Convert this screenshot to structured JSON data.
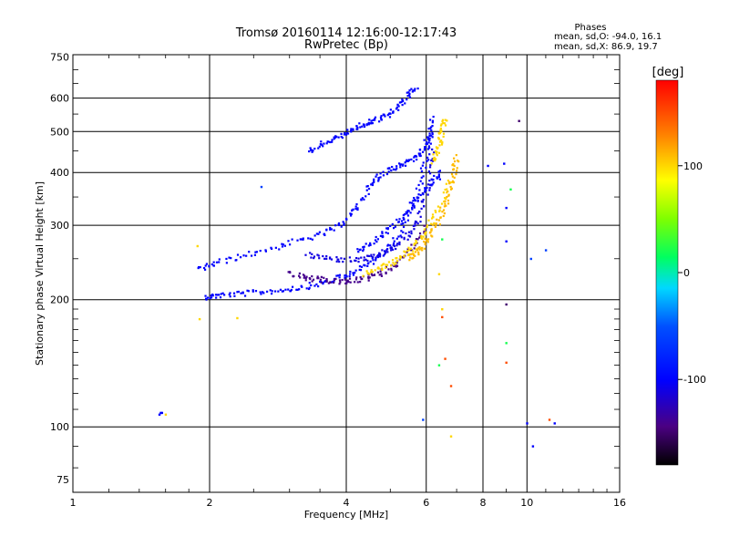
{
  "chart_data": {
    "type": "scatter",
    "title": "Tromsø 20160114 12:16:00-12:17:43",
    "subtitle": "RwPretec (Bp)",
    "xlabel": "Frequency [MHz]",
    "ylabel": "Stationary phase Virtual Height [km]",
    "xscale": "log",
    "yscale": "log",
    "xlim": [
      1,
      16
    ],
    "ylim": [
      70,
      760
    ],
    "x_ticks": [
      1,
      2,
      4,
      6,
      8,
      10,
      16
    ],
    "x_tick_labels": [
      "1",
      "2",
      "4",
      "6",
      "8",
      "10",
      "16"
    ],
    "y_ticks": [
      75,
      100,
      200,
      300,
      400,
      500,
      600,
      750
    ],
    "y_tick_labels": [
      "75",
      "100",
      "200",
      "300",
      "400",
      "500",
      "600",
      "750"
    ],
    "grid": true,
    "phases_info": {
      "title": "Phases",
      "line_o": "mean, sd,O: -94.0, 16.1",
      "line_x": "mean, sd,X: 86.9, 19.7"
    },
    "colorbar": {
      "label": "[deg]",
      "min": -180,
      "max": 180,
      "ticks": [
        100,
        0,
        -100
      ],
      "tick_labels": [
        "100",
        "0",
        "-100"
      ]
    },
    "series": [
      {
        "type": "trace",
        "phase": -100,
        "points": [
          [
            1.95,
            203
          ],
          [
            2.1,
            205
          ],
          [
            2.4,
            207
          ],
          [
            2.8,
            210
          ],
          [
            3.2,
            214
          ],
          [
            3.6,
            220
          ],
          [
            4.0,
            228
          ],
          [
            4.4,
            240
          ],
          [
            4.8,
            258
          ],
          [
            5.2,
            282
          ],
          [
            5.6,
            330
          ],
          [
            5.9,
            400
          ],
          [
            6.1,
            480
          ],
          [
            6.2,
            540
          ]
        ]
      },
      {
        "type": "trace",
        "phase": -100,
        "points": [
          [
            1.9,
            236
          ],
          [
            2.1,
            245
          ],
          [
            2.5,
            258
          ],
          [
            3.0,
            272
          ],
          [
            3.5,
            285
          ],
          [
            3.9,
            300
          ],
          [
            4.2,
            330
          ],
          [
            4.5,
            370
          ],
          [
            4.8,
            400
          ],
          [
            5.2,
            415
          ],
          [
            5.6,
            430
          ],
          [
            5.9,
            450
          ],
          [
            6.1,
            500
          ]
        ]
      },
      {
        "type": "trace",
        "phase": -110,
        "points": [
          [
            3.3,
            255
          ],
          [
            3.7,
            250
          ],
          [
            4.2,
            248
          ],
          [
            4.6,
            252
          ],
          [
            5.0,
            262
          ],
          [
            5.4,
            280
          ],
          [
            5.8,
            310
          ],
          [
            6.0,
            360
          ],
          [
            6.2,
            460
          ]
        ]
      },
      {
        "type": "trace",
        "phase": -100,
        "points": [
          [
            3.3,
            450
          ],
          [
            3.6,
            470
          ],
          [
            3.9,
            490
          ],
          [
            4.2,
            510
          ],
          [
            4.5,
            525
          ],
          [
            4.8,
            540
          ],
          [
            5.1,
            560
          ],
          [
            5.4,
            600
          ],
          [
            5.7,
            640
          ]
        ]
      },
      {
        "type": "trace",
        "phase": -140,
        "points": [
          [
            3.0,
            230
          ],
          [
            3.3,
            225
          ],
          [
            3.6,
            222
          ],
          [
            4.0,
            220
          ],
          [
            4.4,
            224
          ],
          [
            4.8,
            232
          ],
          [
            5.2,
            245
          ],
          [
            5.6,
            265
          ],
          [
            6.0,
            300
          ]
        ]
      },
      {
        "type": "trace",
        "phase": -100,
        "points": [
          [
            4.2,
            260
          ],
          [
            4.6,
            275
          ],
          [
            5.0,
            295
          ],
          [
            5.4,
            320
          ],
          [
            5.8,
            350
          ],
          [
            6.2,
            380
          ],
          [
            6.5,
            400
          ]
        ]
      },
      {
        "type": "trace",
        "phase": 100,
        "points": [
          [
            4.4,
            230
          ],
          [
            4.8,
            238
          ],
          [
            5.2,
            250
          ],
          [
            5.6,
            265
          ],
          [
            6.0,
            290
          ],
          [
            6.4,
            330
          ],
          [
            6.8,
            390
          ]
        ]
      },
      {
        "type": "trace",
        "phase": 110,
        "points": [
          [
            5.5,
            250
          ],
          [
            5.8,
            262
          ],
          [
            6.1,
            280
          ],
          [
            6.4,
            310
          ],
          [
            6.7,
            350
          ],
          [
            6.9,
            400
          ],
          [
            7.0,
            440
          ]
        ]
      },
      {
        "type": "trace",
        "phase": 100,
        "points": [
          [
            6.2,
            420
          ],
          [
            6.4,
            460
          ],
          [
            6.5,
            500
          ],
          [
            6.6,
            540
          ]
        ]
      },
      {
        "type": "points",
        "phase": -100,
        "points": [
          [
            1.55,
            107
          ],
          [
            1.56,
            108
          ],
          [
            1.57,
            108
          ]
        ]
      },
      {
        "type": "points",
        "phase": 100,
        "points": [
          [
            1.6,
            107
          ],
          [
            1.88,
            268
          ],
          [
            1.9,
            180
          ],
          [
            2.3,
            181
          ],
          [
            6.4,
            230
          ],
          [
            6.5,
            190
          ],
          [
            6.8,
            95
          ]
        ]
      },
      {
        "type": "points",
        "phase": 20,
        "points": [
          [
            6.5,
            278
          ],
          [
            9.0,
            158
          ],
          [
            6.4,
            140
          ],
          [
            9.2,
            365
          ]
        ]
      },
      {
        "type": "points",
        "phase": -100,
        "points": [
          [
            8.2,
            415
          ],
          [
            8.9,
            420
          ],
          [
            9.0,
            330
          ],
          [
            9.0,
            275
          ],
          [
            10.0,
            102
          ],
          [
            10.3,
            90
          ],
          [
            11.5,
            102
          ]
        ]
      },
      {
        "type": "points",
        "phase": -150,
        "points": [
          [
            9.0,
            195
          ],
          [
            9.6,
            530
          ]
        ]
      },
      {
        "type": "points",
        "phase": 150,
        "points": [
          [
            6.5,
            182
          ],
          [
            6.6,
            145
          ],
          [
            6.8,
            125
          ],
          [
            9.0,
            142
          ],
          [
            11.2,
            104
          ]
        ]
      },
      {
        "type": "points",
        "phase": -60,
        "points": [
          [
            2.6,
            370
          ],
          [
            5.9,
            104
          ],
          [
            10.2,
            250
          ],
          [
            11.0,
            262
          ]
        ]
      }
    ]
  }
}
